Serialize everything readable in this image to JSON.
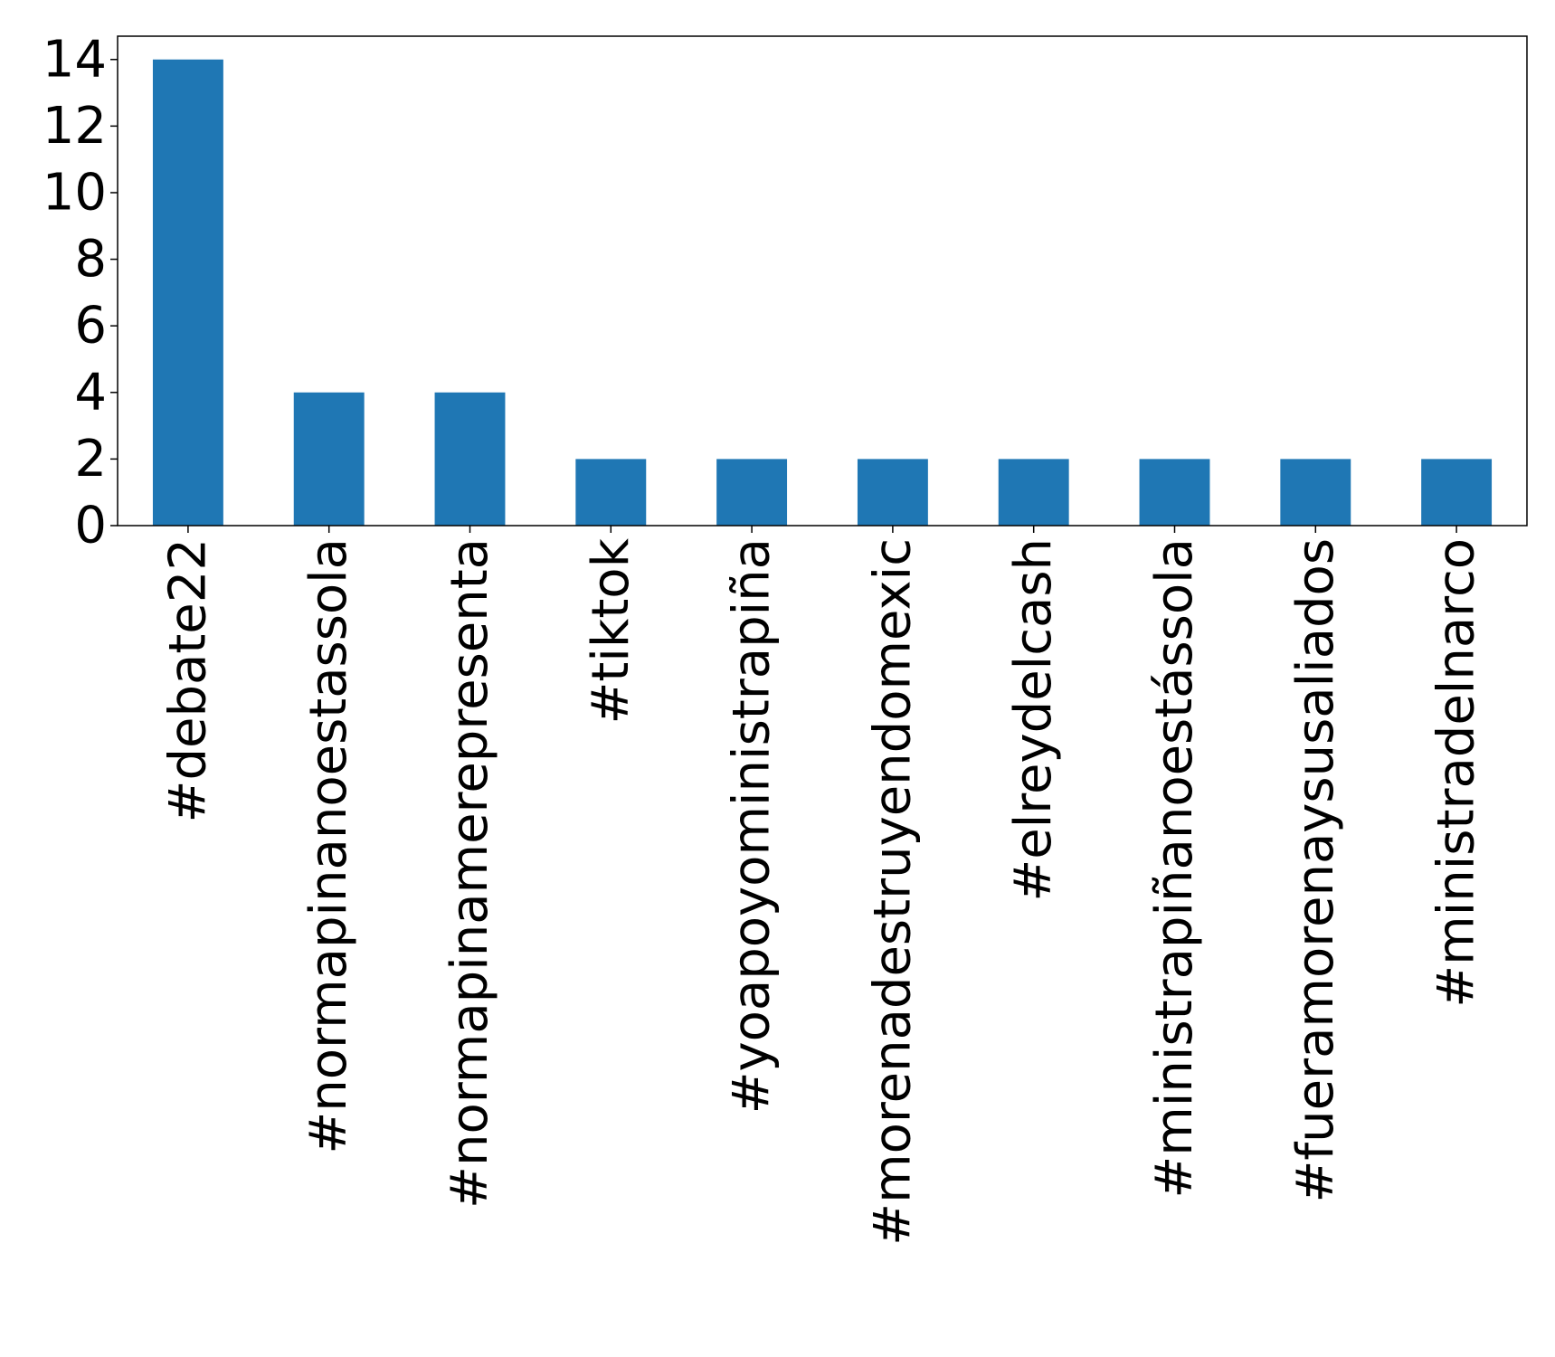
{
  "chart_data": {
    "type": "bar",
    "title": "",
    "xlabel": "",
    "ylabel": "",
    "categories": [
      "#debate22",
      "#normapinanoestassola",
      "#normapinamerepresenta",
      "#tiktok",
      "#yoapoyoministrapiña",
      "#morenadestruyendomexic",
      "#elreydelcash",
      "#ministrapiñanoestássola",
      "#fueramorenaysusaliados",
      "#ministradelnarco"
    ],
    "values": [
      14,
      4,
      4,
      2,
      2,
      2,
      2,
      2,
      2,
      2
    ],
    "ylim": [
      0,
      14.7
    ],
    "yticks": [
      0,
      2,
      4,
      6,
      8,
      10,
      12,
      14
    ],
    "bar_color": "#1f77b4",
    "grid": false,
    "legend": "none"
  }
}
